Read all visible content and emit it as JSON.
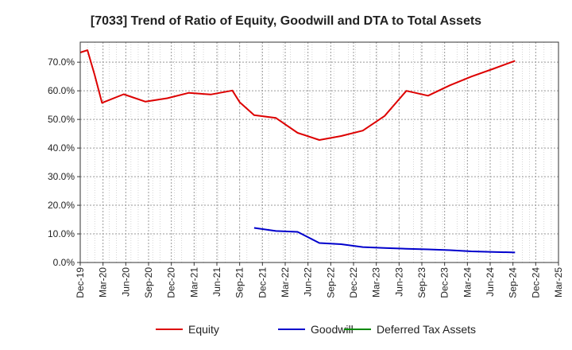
{
  "chart_data": {
    "type": "line",
    "title": "[7033]  Trend of Ratio of Equity, Goodwill and DTA to Total Assets",
    "xlabel": "",
    "ylabel": "",
    "x_range": [
      0,
      66
    ],
    "ylim": [
      0,
      77
    ],
    "grid": true,
    "legend_position": "bottom",
    "x_tick_labels": [
      "Dec-19",
      "Mar-20",
      "Jun-20",
      "Sep-20",
      "Dec-20",
      "Mar-21",
      "Jun-21",
      "Sep-21",
      "Dec-21",
      "Mar-22",
      "Jun-22",
      "Sep-22",
      "Dec-22",
      "Mar-23",
      "Jun-23",
      "Sep-23",
      "Dec-23",
      "Mar-24",
      "Jun-24",
      "Sep-24",
      "Dec-24",
      "Mar-25"
    ],
    "y_ticks": [
      0,
      10,
      20,
      30,
      40,
      50,
      60,
      70
    ],
    "y_tick_labels": [
      "0.0%",
      "10.0%",
      "20.0%",
      "30.0%",
      "40.0%",
      "50.0%",
      "60.0%",
      "70.0%"
    ],
    "series": [
      {
        "name": "Equity",
        "color": "#dd0000",
        "points": [
          [
            0,
            73.4
          ],
          [
            1,
            74.2
          ],
          [
            2,
            65.5
          ],
          [
            3,
            55.8
          ],
          [
            6,
            58.8
          ],
          [
            9,
            56.2
          ],
          [
            12,
            57.4
          ],
          [
            15,
            59.3
          ],
          [
            18,
            58.7
          ],
          [
            21,
            60.1
          ],
          [
            22,
            56.0
          ],
          [
            24,
            51.5
          ],
          [
            27,
            50.5
          ],
          [
            30,
            45.3
          ],
          [
            33,
            42.8
          ],
          [
            36,
            44.2
          ],
          [
            39,
            46.1
          ],
          [
            42,
            51.2
          ],
          [
            45,
            60.0
          ],
          [
            48,
            58.3
          ],
          [
            51,
            61.9
          ],
          [
            54,
            65.0
          ],
          [
            57,
            67.7
          ],
          [
            60,
            70.5
          ]
        ]
      },
      {
        "name": "Goodwill",
        "color": "#0000cc",
        "points": [
          [
            24,
            12.1
          ],
          [
            27,
            11.0
          ],
          [
            30,
            10.7
          ],
          [
            33,
            6.8
          ],
          [
            36,
            6.4
          ],
          [
            39,
            5.4
          ],
          [
            42,
            5.1
          ],
          [
            45,
            4.8
          ],
          [
            48,
            4.6
          ],
          [
            51,
            4.3
          ],
          [
            54,
            3.9
          ],
          [
            57,
            3.7
          ],
          [
            60,
            3.5
          ]
        ]
      },
      {
        "name": "Deferred Tax Assets",
        "color": "#008800",
        "points": []
      }
    ]
  }
}
